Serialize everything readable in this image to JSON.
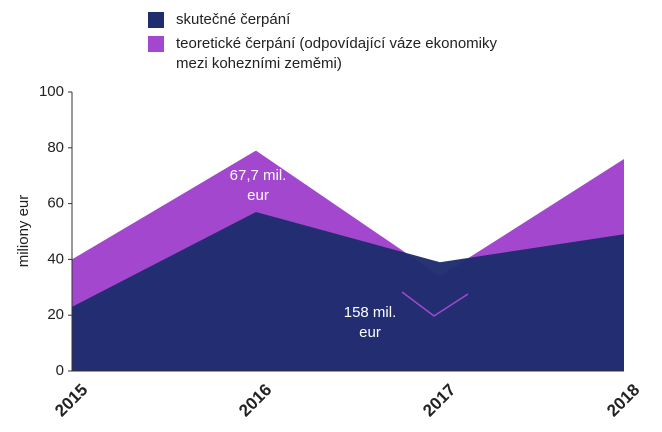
{
  "chart_data": {
    "type": "area",
    "categories": [
      "2015",
      "2016",
      "2017",
      "2018"
    ],
    "series": [
      {
        "name": "teoretické čerpání (odpovídající váze ekonomiky mezi kohezními zeměmi)",
        "color": "#a347cf",
        "values": [
          40,
          79,
          34,
          76
        ]
      },
      {
        "name": "skutečné čerpání",
        "color": "#1f2d6e",
        "values": [
          23,
          57,
          39,
          49
        ]
      }
    ],
    "ylabel": "miliony eur",
    "ylim": [
      0,
      100
    ],
    "yticks": [
      0,
      20,
      40,
      60,
      80,
      100
    ],
    "grid": false,
    "annotations": [
      {
        "lines": [
          "67,7 mil.",
          "eur"
        ]
      },
      {
        "lines": [
          "158 mil.",
          "eur"
        ]
      }
    ]
  }
}
